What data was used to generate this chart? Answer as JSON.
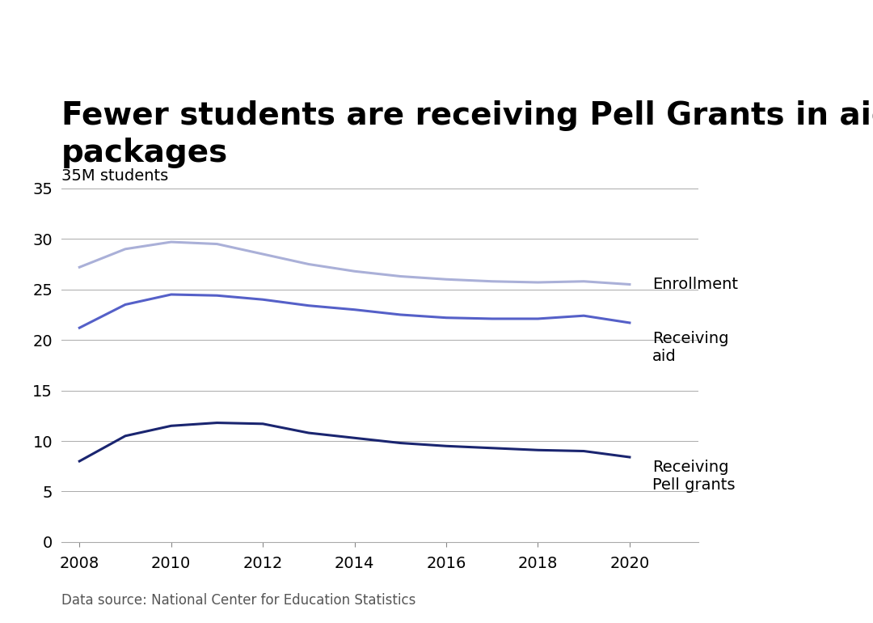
{
  "title_line1": "Fewer students are receiving Pell Grants in aid",
  "title_line2": "packages",
  "ylabel": "35M students",
  "source": "Data source: National Center for Education Statistics",
  "years": [
    2008,
    2009,
    2010,
    2011,
    2012,
    2013,
    2014,
    2015,
    2016,
    2017,
    2018,
    2019,
    2020
  ],
  "enrollment": [
    27.2,
    29.0,
    29.7,
    29.5,
    28.5,
    27.5,
    26.8,
    26.3,
    26.0,
    25.8,
    25.7,
    25.8,
    25.5
  ],
  "receiving_aid": [
    21.2,
    23.5,
    24.5,
    24.4,
    24.0,
    23.4,
    23.0,
    22.5,
    22.2,
    22.1,
    22.1,
    22.4,
    21.7
  ],
  "receiving_pell": [
    8.0,
    10.5,
    11.5,
    11.8,
    11.7,
    10.8,
    10.3,
    9.8,
    9.5,
    9.3,
    9.1,
    9.0,
    8.4
  ],
  "enrollment_color": "#aab0d8",
  "receiving_aid_color": "#5560c8",
  "receiving_pell_color": "#1a2570",
  "label_enrollment": "Enrollment",
  "label_aid": "Receiving\naid",
  "label_pell": "Receiving\nPell grants",
  "label_color": "#000000",
  "yticks": [
    0,
    5,
    10,
    15,
    20,
    25,
    30,
    35
  ],
  "ylim": [
    0,
    37
  ],
  "xlim": [
    2007.6,
    2021.5
  ],
  "xticks": [
    2008,
    2010,
    2012,
    2014,
    2016,
    2018,
    2020
  ],
  "line_width": 2.2,
  "background_color": "#ffffff",
  "title_fontsize": 28,
  "label_fontsize": 14,
  "tick_fontsize": 14,
  "source_fontsize": 12,
  "ylabel_fontsize": 14
}
